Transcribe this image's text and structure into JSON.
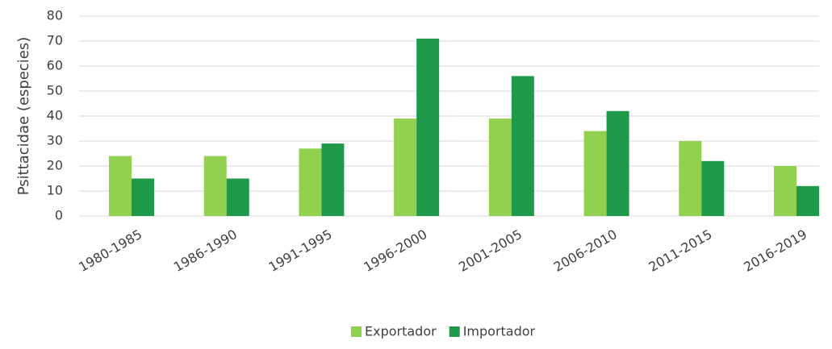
{
  "chart_data": {
    "type": "bar",
    "ylabel": "Psittacidae (especies)",
    "categories": [
      "1980-1985",
      "1986-1990",
      "1991-1995",
      "1996-2000",
      "2001-2005",
      "2006-2010",
      "2011-2015",
      "2016-2019"
    ],
    "series": [
      {
        "name": "Exportador",
        "color": "#92d050",
        "values": [
          24,
          24,
          27,
          39,
          39,
          34,
          30,
          20
        ]
      },
      {
        "name": "Importador",
        "color": "#1e9a4a",
        "values": [
          15,
          15,
          29,
          71,
          56,
          42,
          22,
          12
        ]
      }
    ],
    "ylim": [
      0,
      80
    ],
    "yticks": [
      0,
      10,
      20,
      30,
      40,
      50,
      60,
      70,
      80
    ],
    "grid": true,
    "legend": "bottom"
  }
}
